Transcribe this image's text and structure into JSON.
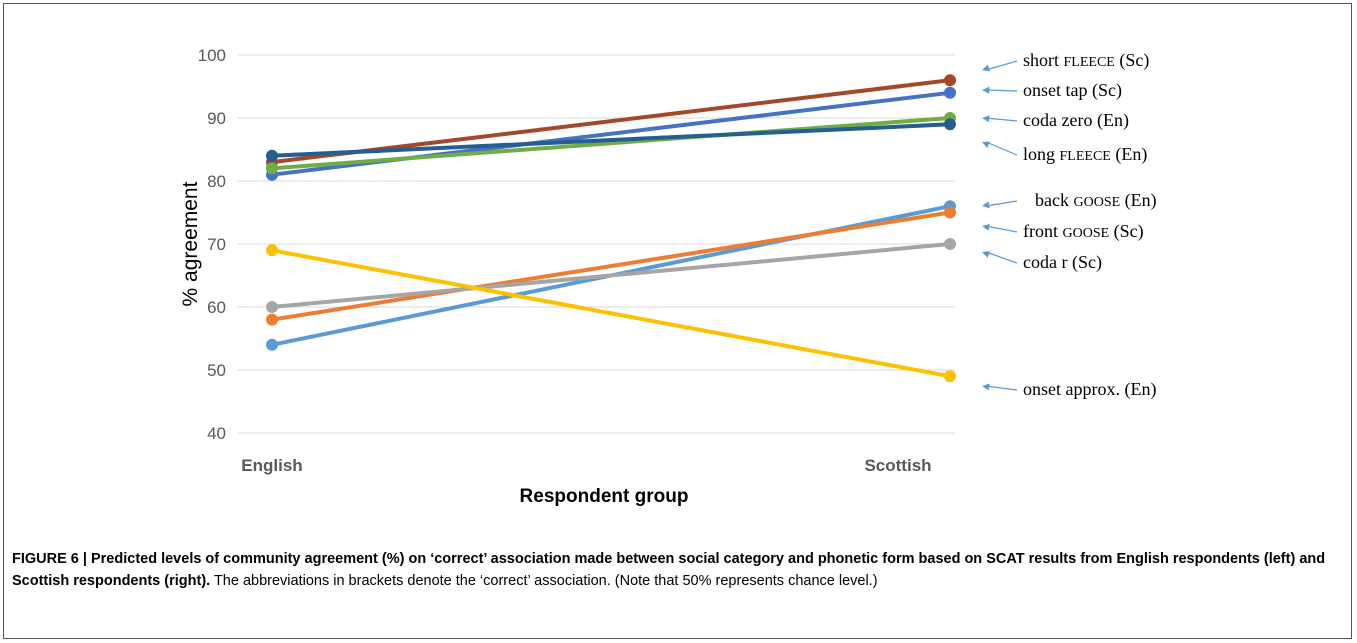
{
  "chart_data": {
    "type": "line",
    "xlabel": "Respondent group",
    "ylabel": "% agreement",
    "categories": [
      "English",
      "Scottish"
    ],
    "ylim": [
      40,
      100
    ],
    "yticks": [
      "40",
      "50",
      "60",
      "70",
      "80",
      "90",
      "100"
    ],
    "grid": true,
    "series": [
      {
        "name": "short FLEECE (Sc)",
        "values": [
          83,
          96
        ],
        "color": "#A5482A"
      },
      {
        "name": "onset tap (Sc)",
        "values": [
          81,
          94
        ],
        "color": "#4472C4"
      },
      {
        "name": "coda zero (En)",
        "values": [
          82,
          90
        ],
        "color": "#70AD47"
      },
      {
        "name": "long FLEECE (En)",
        "values": [
          84,
          89
        ],
        "color": "#255E91"
      },
      {
        "name": "back GOOSE (En)",
        "values": [
          54,
          76
        ],
        "color": "#5B9BD5"
      },
      {
        "name": "front GOOSE (Sc)",
        "values": [
          58,
          75
        ],
        "color": "#ED7D31"
      },
      {
        "name": "coda r (Sc)",
        "values": [
          60,
          70
        ],
        "color": "#A5A5A5"
      },
      {
        "name": "onset approx. (En)",
        "values": [
          69,
          49
        ],
        "color": "#FFC000"
      }
    ],
    "labels": [
      {
        "pre": "short ",
        "sc": "fleece",
        "post": " (Sc)"
      },
      {
        "pre": "onset tap (Sc)",
        "sc": "",
        "post": ""
      },
      {
        "pre": "coda zero (En)",
        "sc": "",
        "post": ""
      },
      {
        "pre": "long ",
        "sc": "fleece",
        "post": " (En)"
      },
      {
        "pre": "back ",
        "sc": "goose",
        "post": " (En)"
      },
      {
        "pre": "front ",
        "sc": "goose",
        "post": " (Sc)"
      },
      {
        "pre": "coda r (Sc)",
        "sc": "",
        "post": ""
      },
      {
        "pre": "onset approx. (En)",
        "sc": "",
        "post": ""
      }
    ],
    "arrow_color": "#5B9BD5"
  },
  "caption": {
    "bold": "FIGURE 6 | Predicted levels of community agreement (%) on ‘correct’ association made between social category and phonetic form based on SCAT results from English respondents (left) and Scottish respondents (right).",
    "normal": " The abbreviations in brackets denote the ‘correct’ association. (Note that 50% represents chance level.)"
  }
}
